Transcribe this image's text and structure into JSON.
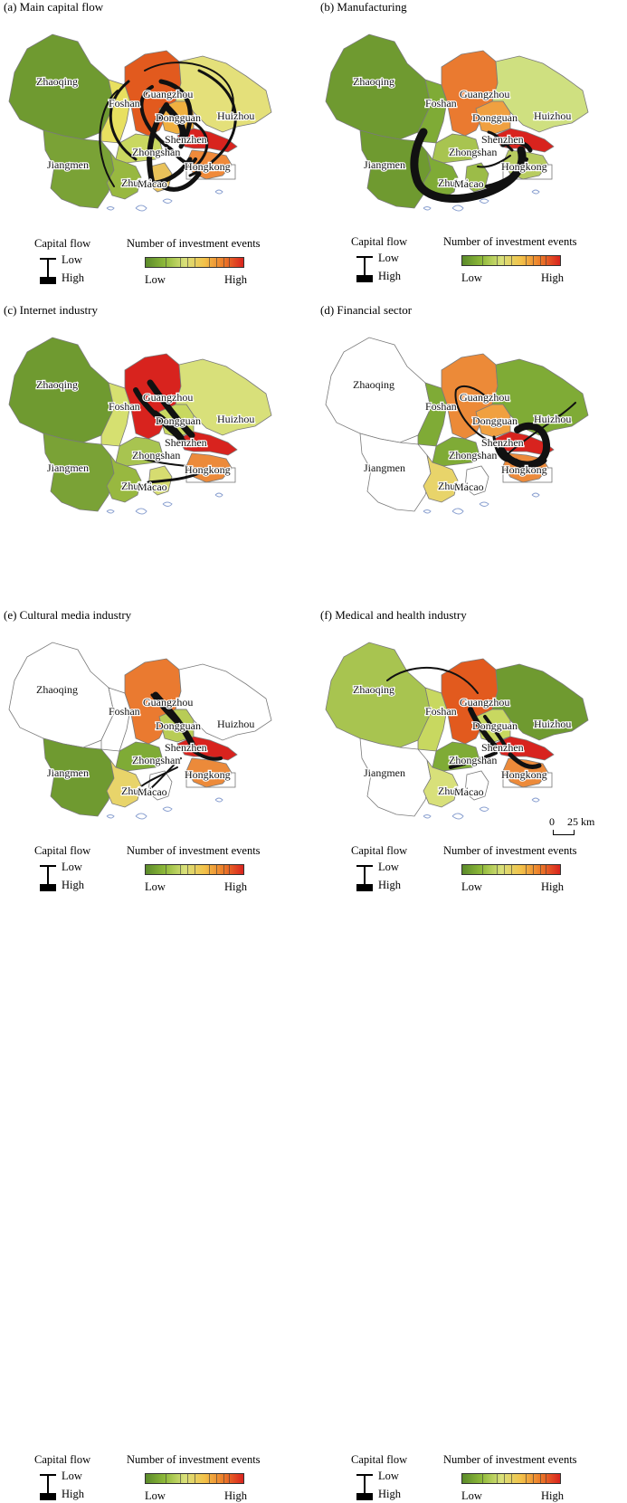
{
  "panels": [
    {
      "title": "(a) Main capital flow",
      "colors": {
        "zq": "#6f9a30",
        "fs": "#e8e060",
        "gz": "#e25a1e",
        "hz": "#e4e07a",
        "dg": "#f0b040",
        "sz": "#d8231e",
        "jm": "#7aa236",
        "zs": "#c9d860",
        "zh": "#98b840",
        "mc": "#e9c25a",
        "hk": "#f08a3a"
      }
    },
    {
      "title": "(b) Manufacturing",
      "colors": {
        "zq": "#6f9a30",
        "fs": "#7fab36",
        "gz": "#ea7a30",
        "hz": "#cfe080",
        "dg": "#f0a040",
        "sz": "#d8231e",
        "jm": "#6f9a30",
        "zs": "#a8c450",
        "zh": "#7fab36",
        "mc": "#9cbc48",
        "hk": "#b8cc60"
      }
    },
    {
      "title": "(c) Internet industry",
      "colors": {
        "zq": "#6f9a30",
        "fs": "#d6e070",
        "gz": "#d8231e",
        "hz": "#d8e07a",
        "dg": "#c8d860",
        "sz": "#d8231e",
        "jm": "#7aa236",
        "zs": "#a8c450",
        "zh": "#98b840",
        "mc": "#d6dc70",
        "hk": "#ec8a3a"
      }
    },
    {
      "title": "(d) Financial sector",
      "colors": {
        "zq": "#ffffff",
        "fs": "#7fab36",
        "gz": "#ec8a38",
        "hz": "#7fab36",
        "dg": "#f0a040",
        "sz": "#d8231e",
        "jm": "#ffffff",
        "zs": "#7fab36",
        "zh": "#e8d46a",
        "mc": "#ffffff",
        "hk": "#ec8a3a"
      }
    },
    {
      "title": "(e) Cultural media industry",
      "colors": {
        "zq": "#ffffff",
        "fs": "#ffffff",
        "gz": "#ea7a30",
        "hz": "#ffffff",
        "dg": "#b8cc56",
        "sz": "#d8231e",
        "jm": "#6f9a30",
        "zs": "#7fab36",
        "zh": "#e8d46a",
        "mc": "#ffffff",
        "hk": "#ec8a3a"
      }
    },
    {
      "title": "(f) Medical and health industry",
      "colors": {
        "zq": "#a8c450",
        "fs": "#c8d860",
        "gz": "#e25a1e",
        "hz": "#6f9a30",
        "dg": "#c8d860",
        "sz": "#d8231e",
        "jm": "#ffffff",
        "zs": "#7fab36",
        "zh": "#d8e07a",
        "mc": "#ffffff",
        "hk": "#ec8a3a"
      }
    }
  ],
  "cities": {
    "zq": "Zhaoqing",
    "fs": "Foshan",
    "gz": "Guangzhou",
    "hz": "Huizhou",
    "dg": "Dongguan",
    "sz": "Shenzhen",
    "jm": "Jiangmen",
    "zs": "Zhongshan",
    "zh": "Zhuhai",
    "mc": "Macao",
    "hk": "Hongkong"
  },
  "legend": {
    "capital_flow": "Capital flow",
    "low": "Low",
    "high": "High",
    "events_title": "Number of investment events",
    "bar_low": "Low",
    "bar_high": "High"
  },
  "scale_bar": {
    "zero": "0",
    "label": "25 km"
  }
}
